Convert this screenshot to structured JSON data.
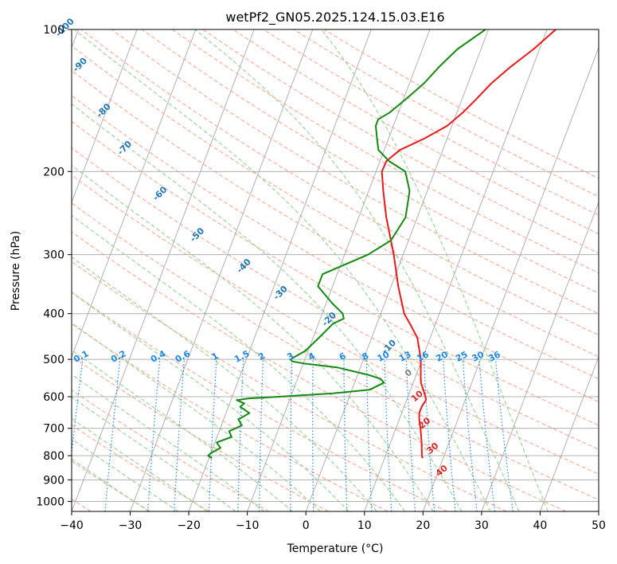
{
  "chart_data": {
    "type": "line",
    "title": "wetPf2_GN05.2025.124.15.03.E16",
    "xlabel": "Temperature (°C)",
    "ylabel": "Pressure (hPa)",
    "xlim": [
      -40,
      50
    ],
    "ylim": [
      1050,
      100
    ],
    "y_scale": "log",
    "skew": true,
    "grid": true,
    "x_ticks": [
      "−40",
      "−30",
      "−20",
      "−10",
      "0",
      "10",
      "20",
      "30",
      "40",
      "50"
    ],
    "y_ticks": [
      "100",
      "200",
      "300",
      "400",
      "500",
      "600",
      "700",
      "800",
      "900",
      "1000"
    ],
    "colors": {
      "temperature": "#e8191a",
      "dewpoint": "#138a12",
      "mixing_ratio": "#1e88e5",
      "dry_adiabat": "#f7a187",
      "moist_adiabat": "#8ccc8a",
      "isotherm": "#7f7f7f",
      "dry_adiabat_label": "#1f77b4",
      "moist_label": "#d62728"
    },
    "mixing_ratio_labels": [
      "0.1",
      "0.2",
      "0.4",
      "0.6",
      "1",
      "1.5",
      "2",
      "3",
      "4",
      "6",
      "8",
      "10",
      "13",
      "16",
      "20",
      "25",
      "30",
      "36"
    ],
    "dry_adiabat_labels": [
      "-100",
      "-90",
      "-80",
      "-70",
      "-60",
      "-50",
      "-40",
      "-30",
      "-20",
      "-10"
    ],
    "moist_labels": [
      "0",
      "10",
      "20",
      "30",
      "40"
    ],
    "series": [
      {
        "name": "temperature",
        "points": [
          [
            810,
            16.5
          ],
          [
            800,
            16.2
          ],
          [
            750,
            15.3
          ],
          [
            700,
            14.2
          ],
          [
            670,
            13.4
          ],
          [
            650,
            13
          ],
          [
            630,
            13
          ],
          [
            610,
            13.3
          ],
          [
            600,
            13.0
          ],
          [
            580,
            12.2
          ],
          [
            560,
            11.3
          ],
          [
            540,
            10.8
          ],
          [
            500,
            9.8
          ],
          [
            450,
            7.8
          ],
          [
            420,
            5.6
          ],
          [
            400,
            4.0
          ],
          [
            350,
            1.2
          ],
          [
            300,
            -1.6
          ],
          [
            250,
            -5.3
          ],
          [
            220,
            -7.5
          ],
          [
            200,
            -9.0
          ],
          [
            190,
            -8.9
          ],
          [
            180,
            -7.3
          ],
          [
            170,
            -3.8
          ],
          [
            160,
            -0.8
          ],
          [
            150,
            1.0
          ],
          [
            140,
            2.5
          ],
          [
            130,
            4.0
          ],
          [
            120,
            6.2
          ],
          [
            110,
            9.0
          ],
          [
            100,
            11.5
          ]
        ]
      },
      {
        "name": "dewpoint",
        "points": [
          [
            810,
            -19.5
          ],
          [
            800,
            -20.3
          ],
          [
            790,
            -20.0
          ],
          [
            770,
            -18.7
          ],
          [
            750,
            -19.7
          ],
          [
            730,
            -17.5
          ],
          [
            710,
            -18.3
          ],
          [
            690,
            -16.5
          ],
          [
            670,
            -17.5
          ],
          [
            650,
            -16.0
          ],
          [
            630,
            -18.0
          ],
          [
            620,
            -17.5
          ],
          [
            610,
            -19.0
          ],
          [
            605,
            -17.0
          ],
          [
            600,
            -12.0
          ],
          [
            590,
            -3.0
          ],
          [
            580,
            3.0
          ],
          [
            560,
            5.0
          ],
          [
            550,
            4.2
          ],
          [
            540,
            2.0
          ],
          [
            520,
            -4.0
          ],
          [
            510,
            -10.0
          ],
          [
            505,
            -12.0
          ],
          [
            500,
            -12.5
          ],
          [
            480,
            -10.5
          ],
          [
            450,
            -9.0
          ],
          [
            420,
            -7.5
          ],
          [
            410,
            -6.0
          ],
          [
            400,
            -6.5
          ],
          [
            380,
            -9.0
          ],
          [
            350,
            -12.5
          ],
          [
            330,
            -12.5
          ],
          [
            300,
            -6.0
          ],
          [
            280,
            -3.0
          ],
          [
            250,
            -2.0
          ],
          [
            220,
            -3.0
          ],
          [
            200,
            -5.0
          ],
          [
            190,
            -8.5
          ],
          [
            180,
            -11.0
          ],
          [
            170,
            -12.0
          ],
          [
            160,
            -13.0
          ],
          [
            155,
            -13.0
          ],
          [
            150,
            -11.5
          ],
          [
            140,
            -9.5
          ],
          [
            130,
            -7.5
          ],
          [
            120,
            -6.0
          ],
          [
            110,
            -4.0
          ],
          [
            100,
            -0.5
          ]
        ]
      }
    ]
  }
}
